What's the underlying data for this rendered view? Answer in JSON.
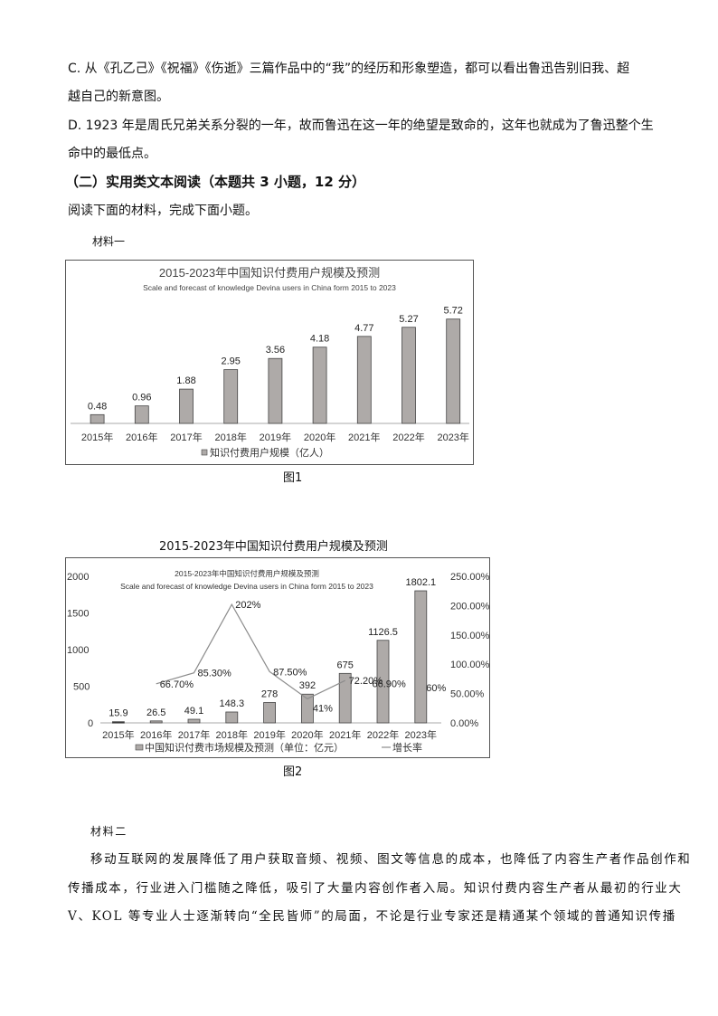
{
  "doc": {
    "option_c_line1": "C. 从《孔乙己》《祝福》《伤逝》三篇作品中的“我”的经历和形象塑造，都可以看出鲁迅告别旧我、超",
    "option_c_line2": "越自己的新意图。",
    "option_d_line1": "D. 1923 年是周氏兄弟关系分裂的一年，故而鲁迅在这一年的绝望是致命的，这年也就成为了鲁迅整个生",
    "option_d_line2": "命中的最低点。",
    "section_heading": "（二）实用类文本阅读（本题共 3 小题，12 分）",
    "instruction": "阅读下面的材料，完成下面小题。",
    "material1_label": "材料一",
    "fig1_caption": "图1",
    "fig2_outer_title": "2015-2023年中国知识付费用户规模及预测",
    "fig2_caption": "图2",
    "material2_label": "材料二",
    "material2_lines": [
      "移动互联网的发展降低了用户获取音频、视频、图文等信息的成本，也降低了内容生产者作品创作和",
      "传播成本，行业进入门槛随之降低，吸引了大量内容创作者入局。知识付费内容生产者从最初的行业大",
      "V、KOL 等专业人士逐渐转向“全民皆师”的局面，不论是行业专家还是精通某个领域的普通知识传播"
    ]
  },
  "chart_data": [
    {
      "type": "bar",
      "title": "2015-2023年中国知识付费用户规模及预测",
      "subtitle": "Scale and forecast of knowledge Devina users in China form 2015 to 2023",
      "categories": [
        "2015年",
        "2016年",
        "2017年",
        "2018年",
        "2019年",
        "2020年",
        "2021年",
        "2022年",
        "2023年"
      ],
      "values": [
        0.48,
        0.96,
        1.88,
        2.95,
        3.56,
        4.18,
        4.77,
        5.27,
        5.72
      ],
      "value_labels": [
        "0.48",
        "0.96",
        "1.88",
        "2.95",
        "3.56",
        "4.18",
        "4.77",
        "5.27",
        "5.72"
      ],
      "legend": [
        "知识付费用户规模（亿人）"
      ],
      "legend_position": "bottom",
      "xlabel": "",
      "ylabel": "",
      "grid": false,
      "bar_color": "#aeaaa8"
    },
    {
      "type": "bar+line",
      "title": "2015-2023年中国知识付费用户规模及预测",
      "subtitle": "Scale and forecast of knowledge Devina users in China form 2015 to 2023",
      "categories": [
        "2015年",
        "2016年",
        "2017年",
        "2018年",
        "2019年",
        "2020年",
        "2021年",
        "2022年",
        "2023年"
      ],
      "series": [
        {
          "name": "中国知识付费市场规模及预测（单位：亿元）",
          "type": "bar",
          "axis": "left",
          "values": [
            15.9,
            26.5,
            49.1,
            148.3,
            278,
            392,
            675,
            1126.5,
            1802.1
          ],
          "value_labels": [
            "15.9",
            "26.5",
            "49.1",
            "148.3",
            "278",
            "392",
            "675",
            "1126.5",
            "1802.1"
          ]
        },
        {
          "name": "增长率",
          "type": "line",
          "axis": "right",
          "values": [
            null,
            66.7,
            85.3,
            202,
            87.5,
            41,
            72.2,
            66.9,
            60
          ],
          "value_labels": [
            "",
            "66.70%",
            "85.30%",
            "202%",
            "87.50%",
            "41%",
            "72.20%",
            "66.90%",
            "60%"
          ]
        }
      ],
      "left_axis": {
        "ticks": [
          "0",
          "500",
          "1000",
          "1500",
          "2000"
        ],
        "range": [
          0,
          2000
        ]
      },
      "right_axis": {
        "ticks": [
          "0.00%",
          "50.00%",
          "100.00%",
          "150.00%",
          "200.00%",
          "250.00%"
        ],
        "range": [
          0,
          250
        ]
      },
      "legend": [
        "中国知识付费市场规模及预测（单位：亿元）",
        "增长率"
      ],
      "legend_position": "bottom",
      "grid": false,
      "bar_color": "#aeaaa8",
      "line_color": "#8c8c8c"
    }
  ]
}
